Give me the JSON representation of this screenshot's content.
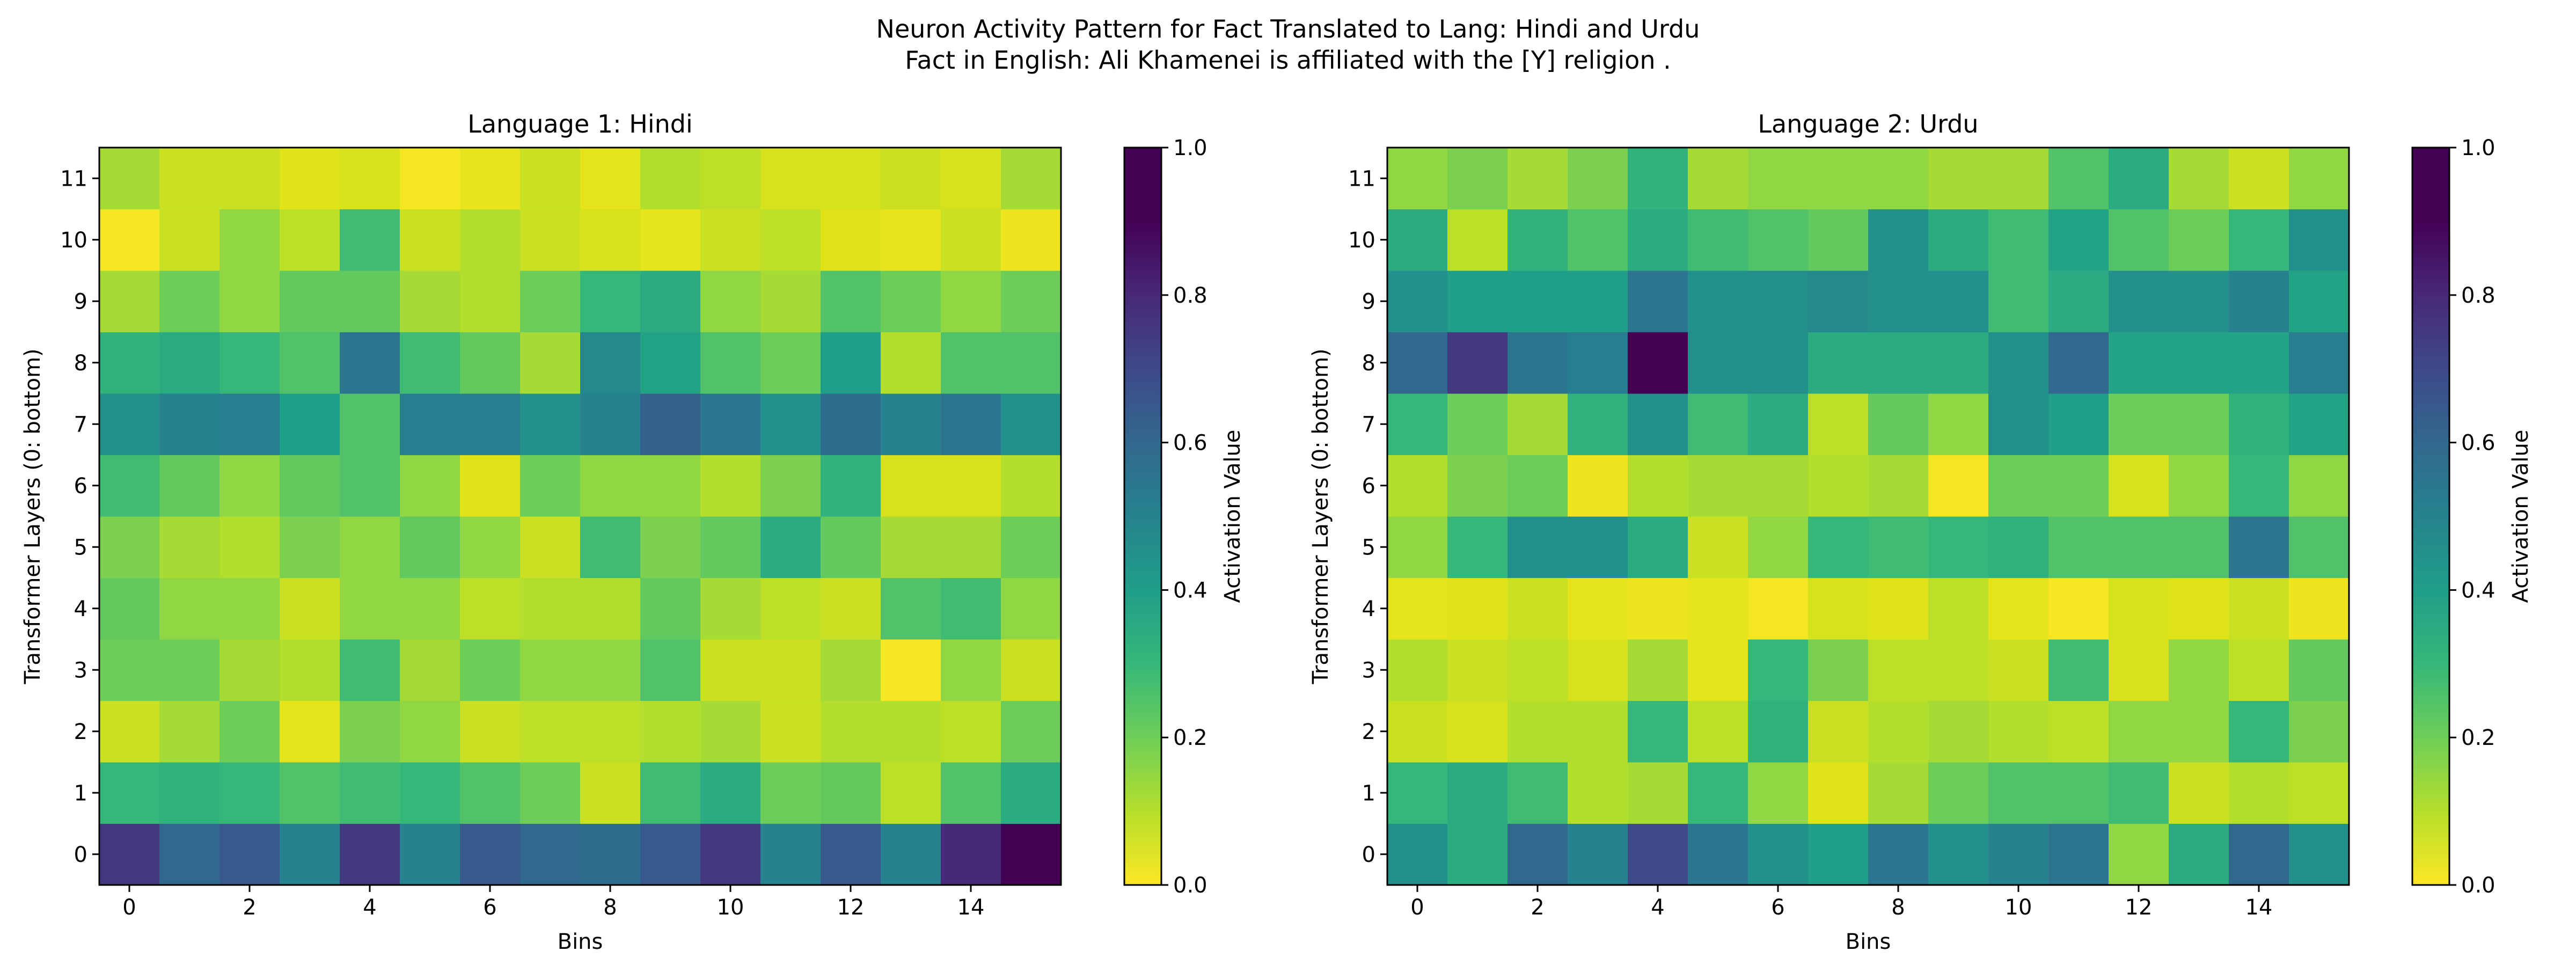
{
  "figure": {
    "title_line1": "Neuron Activity Pattern for Fact Translated to Lang: Hindi and Urdu",
    "title_line2": "Fact in English: Ali Khamenei is affiliated with the [Y] religion ."
  },
  "chart_data": [
    {
      "type": "heatmap",
      "title": "Language 1: Hindi",
      "xlabel": "Bins",
      "ylabel": "Transformer Layers (0: bottom)",
      "colorbar_label": "Activation Value",
      "colormap": "viridis_r",
      "vmin": 0.0,
      "vmax": 1.0,
      "x_ticks": [
        0,
        2,
        4,
        6,
        8,
        10,
        12,
        14
      ],
      "y_ticks": [
        0,
        1,
        2,
        3,
        4,
        5,
        6,
        7,
        8,
        9,
        10,
        11
      ],
      "colorbar_ticks": [
        "0.0",
        "0.2",
        "0.4",
        "0.6",
        "0.8",
        "1.0"
      ],
      "values": [
        [
          0.85,
          0.7,
          0.75,
          0.6,
          0.85,
          0.6,
          0.75,
          0.7,
          0.68,
          0.75,
          0.85,
          0.6,
          0.75,
          0.6,
          0.9,
          1.0
        ],
        [
          0.4,
          0.42,
          0.4,
          0.35,
          0.38,
          0.4,
          0.35,
          0.3,
          0.15,
          0.38,
          0.45,
          0.3,
          0.32,
          0.18,
          0.35,
          0.45
        ],
        [
          0.15,
          0.22,
          0.3,
          0.08,
          0.28,
          0.25,
          0.15,
          0.18,
          0.18,
          0.2,
          0.22,
          0.15,
          0.2,
          0.2,
          0.18,
          0.3
        ],
        [
          0.3,
          0.3,
          0.22,
          0.2,
          0.38,
          0.22,
          0.3,
          0.25,
          0.25,
          0.35,
          0.15,
          0.15,
          0.22,
          0.02,
          0.25,
          0.15
        ],
        [
          0.32,
          0.25,
          0.25,
          0.15,
          0.25,
          0.25,
          0.18,
          0.2,
          0.2,
          0.32,
          0.22,
          0.18,
          0.15,
          0.35,
          0.38,
          0.25
        ],
        [
          0.28,
          0.22,
          0.2,
          0.28,
          0.25,
          0.32,
          0.25,
          0.15,
          0.38,
          0.28,
          0.32,
          0.45,
          0.32,
          0.22,
          0.22,
          0.3
        ],
        [
          0.38,
          0.32,
          0.25,
          0.32,
          0.35,
          0.25,
          0.1,
          0.3,
          0.25,
          0.25,
          0.2,
          0.28,
          0.42,
          0.12,
          0.12,
          0.2
        ],
        [
          0.55,
          0.6,
          0.62,
          0.5,
          0.35,
          0.62,
          0.62,
          0.55,
          0.6,
          0.72,
          0.65,
          0.55,
          0.68,
          0.6,
          0.65,
          0.55
        ],
        [
          0.42,
          0.45,
          0.4,
          0.35,
          0.65,
          0.38,
          0.32,
          0.22,
          0.58,
          0.48,
          0.35,
          0.3,
          0.5,
          0.2,
          0.35,
          0.35
        ],
        [
          0.22,
          0.3,
          0.25,
          0.32,
          0.32,
          0.22,
          0.2,
          0.3,
          0.4,
          0.45,
          0.25,
          0.22,
          0.35,
          0.3,
          0.25,
          0.3
        ],
        [
          0.03,
          0.15,
          0.25,
          0.18,
          0.38,
          0.15,
          0.2,
          0.15,
          0.12,
          0.08,
          0.15,
          0.18,
          0.1,
          0.07,
          0.15,
          0.05
        ],
        [
          0.22,
          0.15,
          0.15,
          0.1,
          0.12,
          0.03,
          0.07,
          0.15,
          0.08,
          0.2,
          0.18,
          0.12,
          0.12,
          0.15,
          0.12,
          0.22
        ]
      ]
    },
    {
      "type": "heatmap",
      "title": "Language 2: Urdu",
      "xlabel": "Bins",
      "ylabel": "Transformer Layers (0: bottom)",
      "colorbar_label": "Activation Value",
      "colormap": "viridis_r",
      "vmin": 0.0,
      "vmax": 1.0,
      "x_ticks": [
        0,
        2,
        4,
        6,
        8,
        10,
        12,
        14
      ],
      "y_ticks": [
        0,
        1,
        2,
        3,
        4,
        5,
        6,
        7,
        8,
        9,
        10,
        11
      ],
      "colorbar_ticks": [
        "0.0",
        "0.2",
        "0.4",
        "0.6",
        "0.8",
        "1.0"
      ],
      "values": [
        [
          0.55,
          0.45,
          0.7,
          0.6,
          0.8,
          0.65,
          0.55,
          0.5,
          0.65,
          0.55,
          0.6,
          0.65,
          0.25,
          0.45,
          0.7,
          0.55
        ],
        [
          0.4,
          0.45,
          0.38,
          0.2,
          0.22,
          0.4,
          0.25,
          0.1,
          0.22,
          0.3,
          0.35,
          0.35,
          0.38,
          0.15,
          0.2,
          0.18
        ],
        [
          0.15,
          0.12,
          0.2,
          0.2,
          0.4,
          0.18,
          0.42,
          0.15,
          0.2,
          0.22,
          0.2,
          0.18,
          0.25,
          0.25,
          0.4,
          0.28
        ],
        [
          0.2,
          0.15,
          0.18,
          0.12,
          0.22,
          0.08,
          0.4,
          0.28,
          0.18,
          0.18,
          0.15,
          0.38,
          0.12,
          0.25,
          0.18,
          0.32
        ],
        [
          0.08,
          0.1,
          0.15,
          0.08,
          0.05,
          0.08,
          0.03,
          0.12,
          0.1,
          0.18,
          0.08,
          0.02,
          0.12,
          0.1,
          0.15,
          0.05
        ],
        [
          0.25,
          0.4,
          0.55,
          0.55,
          0.45,
          0.15,
          0.25,
          0.4,
          0.38,
          0.4,
          0.42,
          0.35,
          0.35,
          0.35,
          0.65,
          0.35
        ],
        [
          0.2,
          0.28,
          0.3,
          0.05,
          0.2,
          0.22,
          0.22,
          0.2,
          0.22,
          0.03,
          0.3,
          0.3,
          0.12,
          0.25,
          0.4,
          0.25
        ],
        [
          0.4,
          0.3,
          0.22,
          0.42,
          0.55,
          0.38,
          0.45,
          0.18,
          0.32,
          0.25,
          0.55,
          0.5,
          0.3,
          0.3,
          0.42,
          0.48
        ],
        [
          0.7,
          0.85,
          0.65,
          0.62,
          1.0,
          0.55,
          0.55,
          0.45,
          0.45,
          0.45,
          0.55,
          0.7,
          0.48,
          0.48,
          0.48,
          0.62
        ],
        [
          0.55,
          0.5,
          0.5,
          0.5,
          0.65,
          0.55,
          0.55,
          0.58,
          0.55,
          0.55,
          0.38,
          0.45,
          0.55,
          0.55,
          0.6,
          0.48
        ],
        [
          0.45,
          0.18,
          0.42,
          0.35,
          0.45,
          0.38,
          0.35,
          0.32,
          0.55,
          0.45,
          0.38,
          0.48,
          0.35,
          0.3,
          0.4,
          0.55
        ],
        [
          0.25,
          0.28,
          0.22,
          0.28,
          0.42,
          0.22,
          0.25,
          0.25,
          0.25,
          0.22,
          0.22,
          0.35,
          0.45,
          0.22,
          0.15,
          0.25
        ]
      ]
    }
  ]
}
